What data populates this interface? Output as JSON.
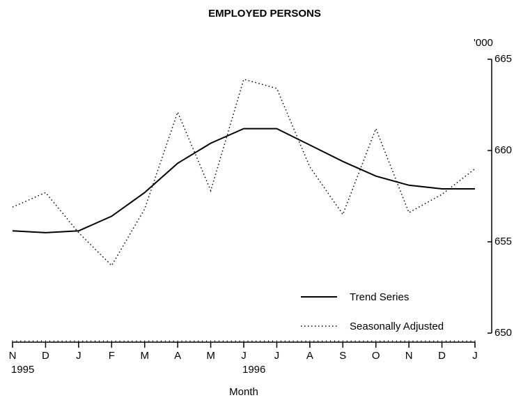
{
  "chart_data": {
    "type": "line",
    "title": "EMPLOYED PERSONS",
    "xlabel": "Month",
    "y_unit": "'000",
    "categories": [
      "N",
      "D",
      "J",
      "F",
      "M",
      "A",
      "M",
      "J",
      "J",
      "A",
      "S",
      "O",
      "N",
      "D",
      "J"
    ],
    "category_years": [
      "1995",
      null,
      null,
      null,
      null,
      null,
      null,
      "1996",
      null,
      null,
      null,
      null,
      null,
      null,
      null
    ],
    "series": [
      {
        "name": "Trend Series",
        "color": "#000000",
        "style": "solid",
        "values": [
          655.6,
          655.5,
          655.6,
          656.4,
          657.7,
          659.3,
          660.4,
          661.2,
          661.2,
          660.3,
          659.4,
          658.6,
          658.1,
          657.9,
          657.9
        ]
      },
      {
        "name": "Seasonally Adjusted",
        "color": "#000000",
        "style": "dotted",
        "values": [
          656.9,
          657.7,
          655.5,
          653.7,
          656.8,
          662.1,
          657.8,
          663.9,
          663.4,
          659.1,
          656.5,
          661.2,
          656.6,
          657.6,
          659.0
        ]
      }
    ],
    "ylim": [
      650,
      665
    ],
    "yticks": [
      650,
      655,
      660,
      665
    ],
    "y_axis_side": "right",
    "grid": false,
    "legend": "lower right"
  }
}
